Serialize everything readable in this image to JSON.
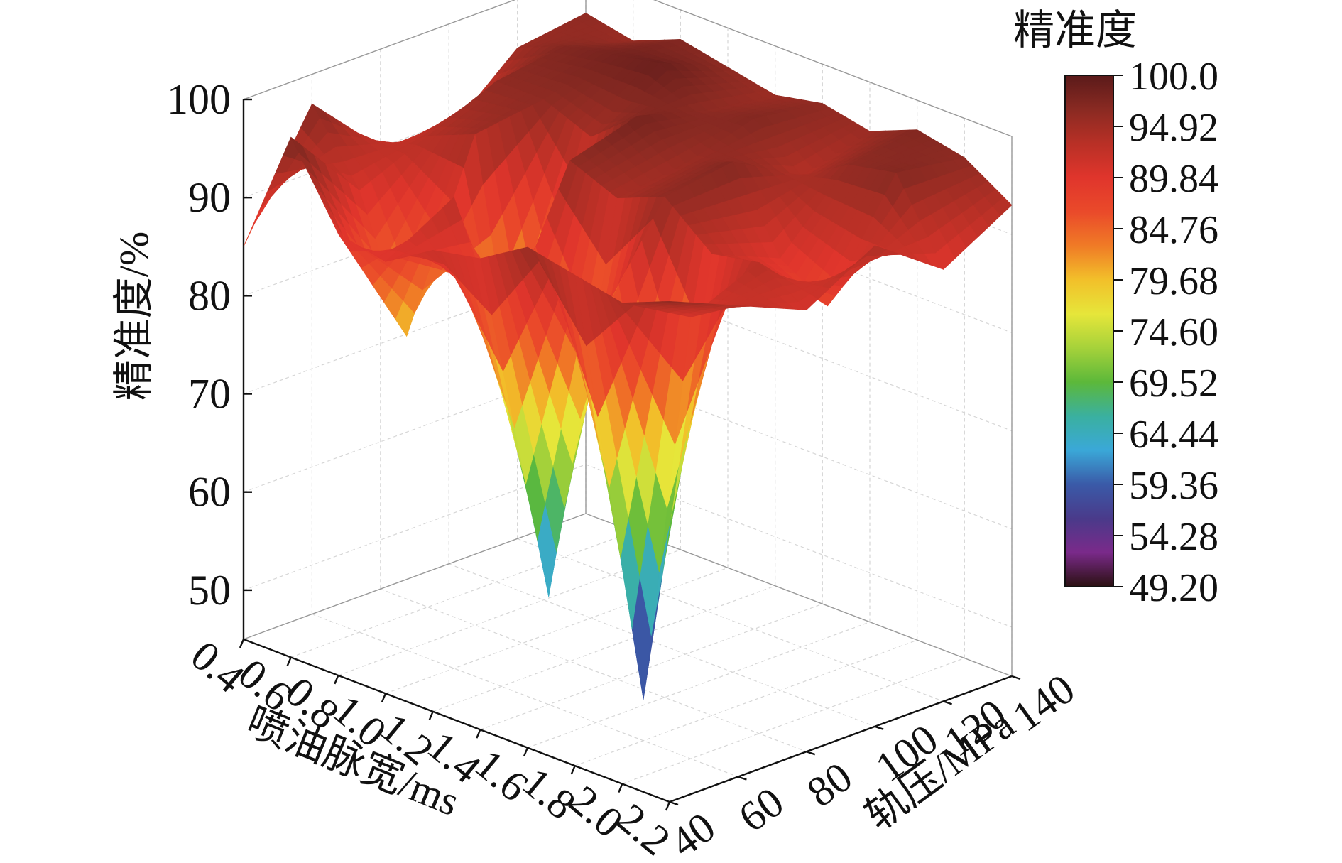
{
  "chart_data": {
    "type": "surface3d",
    "z_axis": {
      "label": "精准度/%",
      "ticks": [
        "50",
        "60",
        "70",
        "80",
        "90",
        "100"
      ],
      "range": [
        45,
        100
      ]
    },
    "x_axis": {
      "label": "喷油脉宽/ms",
      "ticks": [
        "0.4",
        "0.6",
        "0.8",
        "1.0",
        "1.2",
        "1.4",
        "1.6",
        "1.8",
        "2.0",
        "2.2"
      ],
      "range": [
        0.4,
        2.2
      ]
    },
    "y_axis": {
      "label": "轨压/MPa",
      "ticks": [
        "40",
        "60",
        "80",
        "100",
        "120",
        "140"
      ],
      "range": [
        40,
        140
      ]
    },
    "colorbar": {
      "title": "精准度",
      "ticks": [
        "100.0",
        "94.92",
        "89.84",
        "84.76",
        "79.68",
        "74.60",
        "69.52",
        "64.44",
        "59.36",
        "54.28",
        "49.20"
      ],
      "range": [
        49.2,
        100.0
      ],
      "colors": [
        "#5a1a1a",
        "#8a2a22",
        "#b83026",
        "#e0352c",
        "#ea4a2a",
        "#f07a26",
        "#f2c02a",
        "#e6e63a",
        "#a6d23a",
        "#5cb83a",
        "#3ab0a0",
        "#3aa8d8",
        "#3a5aa8",
        "#4a3a8a",
        "#7a2a8a",
        "#2a1010"
      ]
    },
    "pulse_width_ms": [
      0.4,
      0.6,
      0.8,
      1.0,
      1.2,
      1.4,
      1.6,
      1.8,
      2.0,
      2.2
    ],
    "rail_pressure_mpa": [
      40,
      60,
      80,
      100,
      120,
      140
    ],
    "accuracy_percent": [
      [
        85,
        97,
        90,
        89,
        95,
        96
      ],
      [
        98,
        90,
        93,
        96,
        97,
        95
      ],
      [
        90,
        77,
        95,
        96,
        98,
        97
      ],
      [
        89,
        93,
        66,
        94,
        99,
        96
      ],
      [
        92,
        81,
        96,
        98,
        96,
        95
      ],
      [
        93,
        56,
        94,
        95,
        97,
        96
      ],
      [
        96,
        85,
        96,
        97,
        93,
        95
      ],
      [
        95,
        49.2,
        92,
        89,
        96,
        97
      ],
      [
        94,
        90,
        93,
        86,
        97,
        96
      ],
      [
        96,
        93,
        90,
        94,
        89,
        93
      ]
    ]
  }
}
